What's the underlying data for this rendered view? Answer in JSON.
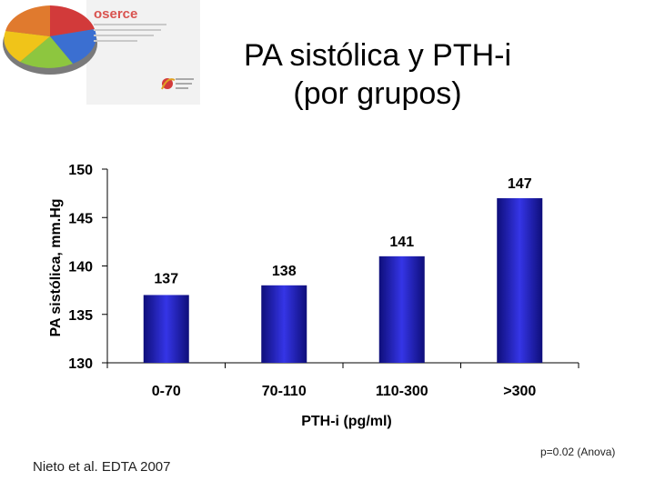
{
  "logo": {
    "text": "oserce"
  },
  "slide": {
    "title_line1": "PA sistólica y PTH-i",
    "title_line2": "(por grupos)"
  },
  "chart_data": {
    "type": "bar",
    "categories": [
      "0-70",
      "70-110",
      "110-300",
      ">300"
    ],
    "values": [
      137,
      138,
      141,
      147
    ],
    "data_labels": [
      "137",
      "138",
      "141",
      "147"
    ],
    "xlabel": "PTH-i (pg/ml)",
    "ylabel": "PA sistólica, mm.Hg",
    "ylim": [
      130,
      150
    ],
    "yticks": [
      150,
      145,
      140,
      135,
      130
    ],
    "grid": false,
    "legend": "none",
    "bar_color": "#1a1aa6",
    "bar_highlight": "#3535e6"
  },
  "footer": {
    "citation": "Nieto et al. EDTA 2007",
    "pvalue": "p=0.02 (Anova)"
  }
}
